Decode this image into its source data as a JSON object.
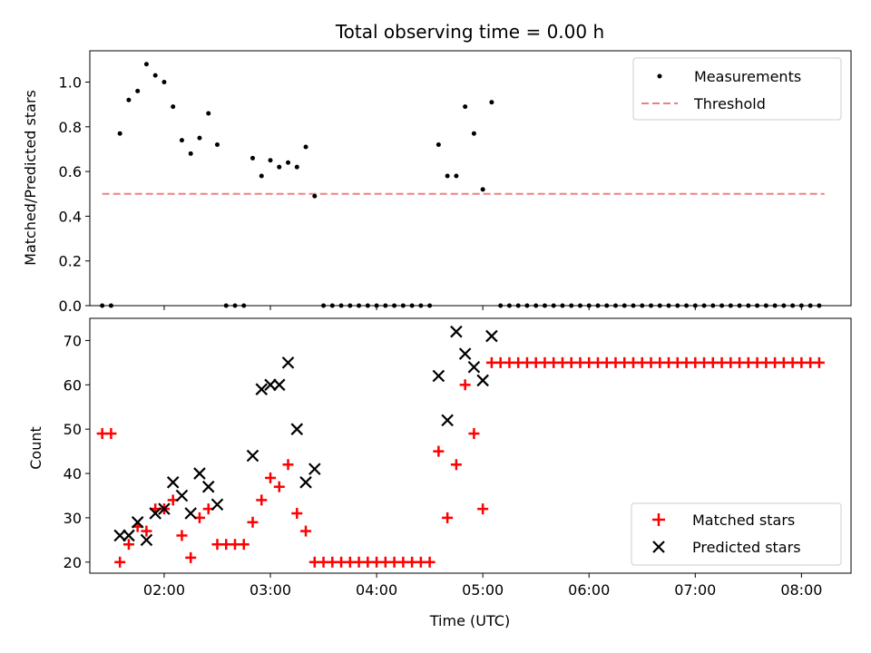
{
  "chart_data": [
    {
      "type": "scatter",
      "title": "Total observing time = 0.00 h",
      "xlabel": "",
      "ylabel": "Matched/Predicted stars",
      "xlim": [
        "01:18",
        "08:28"
      ],
      "ylim": [
        0,
        1.14
      ],
      "yticks": [
        "0.0",
        "0.2",
        "0.4",
        "0.6",
        "0.8",
        "1.0"
      ],
      "legend_position": "top-right",
      "legend": [
        {
          "label": "Measurements",
          "marker": "dot",
          "color": "#000000"
        },
        {
          "label": "Threshold",
          "marker": "dashed-line",
          "color": "#f08080"
        }
      ],
      "threshold": {
        "name": "Threshold",
        "value": 0.5,
        "x_start": "01:25",
        "x_end": "08:13",
        "color": "#f08080"
      },
      "series": [
        {
          "name": "Measurements",
          "color": "#000000",
          "points": [
            [
              "01:25",
              0
            ],
            [
              "01:30",
              0
            ],
            [
              "01:35",
              0.77
            ],
            [
              "01:40",
              0.92
            ],
            [
              "01:45",
              0.96
            ],
            [
              "01:50",
              1.08
            ],
            [
              "01:55",
              1.03
            ],
            [
              "02:00",
              1.0
            ],
            [
              "02:05",
              0.89
            ],
            [
              "02:10",
              0.74
            ],
            [
              "02:15",
              0.68
            ],
            [
              "02:20",
              0.75
            ],
            [
              "02:25",
              0.86
            ],
            [
              "02:30",
              0.72
            ],
            [
              "02:35",
              0
            ],
            [
              "02:40",
              0
            ],
            [
              "02:45",
              0
            ],
            [
              "02:50",
              0.66
            ],
            [
              "02:55",
              0.58
            ],
            [
              "03:00",
              0.65
            ],
            [
              "03:05",
              0.62
            ],
            [
              "03:10",
              0.64
            ],
            [
              "03:15",
              0.62
            ],
            [
              "03:20",
              0.71
            ],
            [
              "03:25",
              0.49
            ],
            [
              "03:30",
              0
            ],
            [
              "03:35",
              0
            ],
            [
              "03:40",
              0
            ],
            [
              "03:45",
              0
            ],
            [
              "03:50",
              0
            ],
            [
              "03:55",
              0
            ],
            [
              "04:00",
              0
            ],
            [
              "04:05",
              0
            ],
            [
              "04:10",
              0
            ],
            [
              "04:15",
              0
            ],
            [
              "04:20",
              0
            ],
            [
              "04:25",
              0
            ],
            [
              "04:30",
              0
            ],
            [
              "04:35",
              0.72
            ],
            [
              "04:40",
              0.58
            ],
            [
              "04:45",
              0.58
            ],
            [
              "04:50",
              0.89
            ],
            [
              "04:55",
              0.77
            ],
            [
              "05:00",
              0.52
            ],
            [
              "05:05",
              0.91
            ],
            [
              "05:10",
              0
            ],
            [
              "05:15",
              0
            ],
            [
              "05:20",
              0
            ],
            [
              "05:25",
              0
            ],
            [
              "05:30",
              0
            ],
            [
              "05:35",
              0
            ],
            [
              "05:40",
              0
            ],
            [
              "05:45",
              0
            ],
            [
              "05:50",
              0
            ],
            [
              "05:55",
              0
            ],
            [
              "06:00",
              0
            ],
            [
              "06:05",
              0
            ],
            [
              "06:10",
              0
            ],
            [
              "06:15",
              0
            ],
            [
              "06:20",
              0
            ],
            [
              "06:25",
              0
            ],
            [
              "06:30",
              0
            ],
            [
              "06:35",
              0
            ],
            [
              "06:40",
              0
            ],
            [
              "06:45",
              0
            ],
            [
              "06:50",
              0
            ],
            [
              "06:55",
              0
            ],
            [
              "07:00",
              0
            ],
            [
              "07:05",
              0
            ],
            [
              "07:10",
              0
            ],
            [
              "07:15",
              0
            ],
            [
              "07:20",
              0
            ],
            [
              "07:25",
              0
            ],
            [
              "07:30",
              0
            ],
            [
              "07:35",
              0
            ],
            [
              "07:40",
              0
            ],
            [
              "07:45",
              0
            ],
            [
              "07:50",
              0
            ],
            [
              "07:55",
              0
            ],
            [
              "08:00",
              0
            ],
            [
              "08:05",
              0
            ],
            [
              "08:10",
              0
            ]
          ]
        }
      ]
    },
    {
      "type": "scatter",
      "title": "",
      "xlabel": "Time (UTC)",
      "ylabel": "Count",
      "xlim": [
        "01:18",
        "08:28"
      ],
      "ylim": [
        17.5,
        75
      ],
      "yticks": [
        "20",
        "30",
        "40",
        "50",
        "60",
        "70"
      ],
      "xticks": [
        "02:00",
        "03:00",
        "04:00",
        "05:00",
        "06:00",
        "07:00",
        "08:00"
      ],
      "legend_position": "bottom-right",
      "legend": [
        {
          "label": "Matched stars",
          "marker": "plus",
          "color": "#ff0000"
        },
        {
          "label": "Predicted stars",
          "marker": "x",
          "color": "#000000"
        }
      ],
      "series": [
        {
          "name": "Matched stars",
          "marker": "plus",
          "color": "#ff0000",
          "points": [
            [
              "01:25",
              49
            ],
            [
              "01:30",
              49
            ],
            [
              "01:35",
              20
            ],
            [
              "01:40",
              24
            ],
            [
              "01:45",
              28
            ],
            [
              "01:50",
              27
            ],
            [
              "01:55",
              32
            ],
            [
              "02:00",
              32
            ],
            [
              "02:05",
              34
            ],
            [
              "02:10",
              26
            ],
            [
              "02:15",
              21
            ],
            [
              "02:20",
              30
            ],
            [
              "02:25",
              32
            ],
            [
              "02:30",
              24
            ],
            [
              "02:35",
              24
            ],
            [
              "02:40",
              24
            ],
            [
              "02:45",
              24
            ],
            [
              "02:50",
              29
            ],
            [
              "02:55",
              34
            ],
            [
              "03:00",
              39
            ],
            [
              "03:05",
              37
            ],
            [
              "03:10",
              42
            ],
            [
              "03:15",
              31
            ],
            [
              "03:20",
              27
            ],
            [
              "03:25",
              20
            ],
            [
              "03:30",
              20
            ],
            [
              "03:35",
              20
            ],
            [
              "03:40",
              20
            ],
            [
              "03:45",
              20
            ],
            [
              "03:50",
              20
            ],
            [
              "03:55",
              20
            ],
            [
              "04:00",
              20
            ],
            [
              "04:05",
              20
            ],
            [
              "04:10",
              20
            ],
            [
              "04:15",
              20
            ],
            [
              "04:20",
              20
            ],
            [
              "04:25",
              20
            ],
            [
              "04:30",
              20
            ],
            [
              "04:35",
              45
            ],
            [
              "04:40",
              30
            ],
            [
              "04:45",
              42
            ],
            [
              "04:50",
              60
            ],
            [
              "04:55",
              49
            ],
            [
              "05:00",
              32
            ],
            [
              "05:05",
              65
            ],
            [
              "05:10",
              65
            ],
            [
              "05:15",
              65
            ],
            [
              "05:20",
              65
            ],
            [
              "05:25",
              65
            ],
            [
              "05:30",
              65
            ],
            [
              "05:35",
              65
            ],
            [
              "05:40",
              65
            ],
            [
              "05:45",
              65
            ],
            [
              "05:50",
              65
            ],
            [
              "05:55",
              65
            ],
            [
              "06:00",
              65
            ],
            [
              "06:05",
              65
            ],
            [
              "06:10",
              65
            ],
            [
              "06:15",
              65
            ],
            [
              "06:20",
              65
            ],
            [
              "06:25",
              65
            ],
            [
              "06:30",
              65
            ],
            [
              "06:35",
              65
            ],
            [
              "06:40",
              65
            ],
            [
              "06:45",
              65
            ],
            [
              "06:50",
              65
            ],
            [
              "06:55",
              65
            ],
            [
              "07:00",
              65
            ],
            [
              "07:05",
              65
            ],
            [
              "07:10",
              65
            ],
            [
              "07:15",
              65
            ],
            [
              "07:20",
              65
            ],
            [
              "07:25",
              65
            ],
            [
              "07:30",
              65
            ],
            [
              "07:35",
              65
            ],
            [
              "07:40",
              65
            ],
            [
              "07:45",
              65
            ],
            [
              "07:50",
              65
            ],
            [
              "07:55",
              65
            ],
            [
              "08:00",
              65
            ],
            [
              "08:05",
              65
            ],
            [
              "08:10",
              65
            ]
          ]
        },
        {
          "name": "Predicted stars",
          "marker": "x",
          "color": "#000000",
          "points": [
            [
              "01:35",
              26
            ],
            [
              "01:40",
              26
            ],
            [
              "01:45",
              29
            ],
            [
              "01:50",
              25
            ],
            [
              "01:55",
              31
            ],
            [
              "02:00",
              32
            ],
            [
              "02:05",
              38
            ],
            [
              "02:10",
              35
            ],
            [
              "02:15",
              31
            ],
            [
              "02:20",
              40
            ],
            [
              "02:25",
              37
            ],
            [
              "02:30",
              33
            ],
            [
              "02:50",
              44
            ],
            [
              "02:55",
              59
            ],
            [
              "03:00",
              60
            ],
            [
              "03:05",
              60
            ],
            [
              "03:10",
              65
            ],
            [
              "03:15",
              50
            ],
            [
              "03:20",
              38
            ],
            [
              "03:25",
              41
            ],
            [
              "04:35",
              62
            ],
            [
              "04:40",
              52
            ],
            [
              "04:45",
              72
            ],
            [
              "04:50",
              67
            ],
            [
              "04:55",
              64
            ],
            [
              "05:00",
              61
            ],
            [
              "05:05",
              71
            ]
          ]
        }
      ]
    }
  ]
}
